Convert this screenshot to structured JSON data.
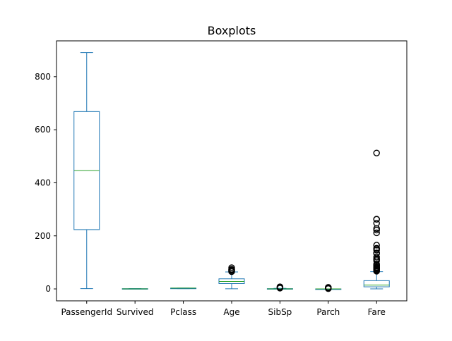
{
  "chart_data": {
    "type": "boxplot",
    "title": "Boxplots",
    "xlabel": "",
    "ylabel": "",
    "ylim": [
      -45,
      935
    ],
    "yticks": [
      0,
      200,
      400,
      600,
      800
    ],
    "grid": false,
    "colors": {
      "box": "#1f77b4",
      "median": "#2ca02c",
      "flier": "#000000"
    },
    "categories": [
      "PassengerId",
      "Survived",
      "Pclass",
      "Age",
      "SibSp",
      "Parch",
      "Fare"
    ],
    "boxes": [
      {
        "name": "PassengerId",
        "whislo": 1,
        "q1": 223.5,
        "med": 446,
        "q3": 668.5,
        "whishi": 891,
        "fliers": []
      },
      {
        "name": "Survived",
        "whislo": 0,
        "q1": 0,
        "med": 0,
        "q3": 1,
        "whishi": 1,
        "fliers": []
      },
      {
        "name": "Pclass",
        "whislo": 1,
        "q1": 2,
        "med": 3,
        "q3": 3,
        "whishi": 3,
        "fliers": []
      },
      {
        "name": "Age",
        "whislo": 0.42,
        "q1": 20.1,
        "med": 28,
        "q3": 38,
        "whishi": 64,
        "fliers": [
          65,
          66,
          70,
          70.5,
          71,
          74,
          80
        ]
      },
      {
        "name": "SibSp",
        "whislo": 0,
        "q1": 0,
        "med": 0,
        "q3": 1,
        "whishi": 2,
        "fliers": [
          3,
          4,
          5,
          8
        ]
      },
      {
        "name": "Parch",
        "whislo": 0,
        "q1": 0,
        "med": 0,
        "q3": 0,
        "whishi": 0,
        "fliers": [
          1,
          2,
          3,
          4,
          5,
          6
        ]
      },
      {
        "name": "Fare",
        "whislo": 0,
        "q1": 7.91,
        "med": 14.45,
        "q3": 31,
        "whishi": 65,
        "fliers": [
          66.6,
          69.55,
          71.28,
          73.5,
          76.73,
          77.96,
          79.65,
          82.17,
          86.5,
          89.1,
          90,
          93.5,
          106.43,
          110.88,
          113.28,
          120,
          133.65,
          134.5,
          135.63,
          146.52,
          151.55,
          153.46,
          164.87,
          211.34,
          221.78,
          227.53,
          247.52,
          262.38,
          263,
          512.33
        ]
      }
    ]
  }
}
